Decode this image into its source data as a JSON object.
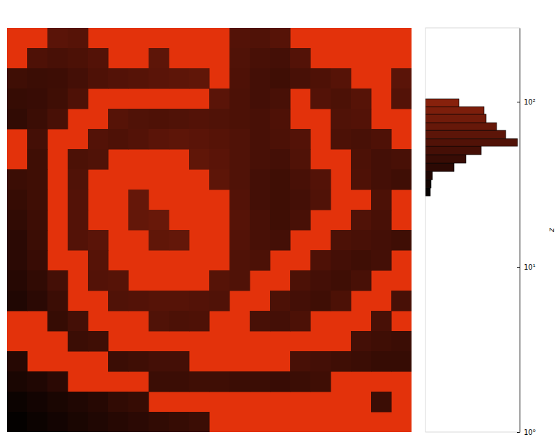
{
  "chart_data": [
    {
      "type": "heatmap",
      "tick_labels": false,
      "color": "#e3320b",
      "z": [
        [
          null,
          null,
          62,
          60,
          null,
          null,
          null,
          null,
          null,
          null,
          null,
          58,
          56,
          60,
          null,
          null,
          null,
          null,
          null,
          null
        ],
        [
          null,
          55,
          52,
          54,
          58,
          null,
          null,
          64,
          null,
          null,
          null,
          56,
          52,
          50,
          58,
          null,
          null,
          null,
          null,
          null
        ],
        [
          48,
          46,
          47,
          50,
          55,
          58,
          60,
          62,
          64,
          66,
          null,
          55,
          50,
          48,
          52,
          55,
          60,
          null,
          null,
          62
        ],
        [
          44,
          45,
          48,
          55,
          null,
          null,
          null,
          null,
          null,
          null,
          62,
          54,
          50,
          52,
          null,
          58,
          54,
          60,
          null,
          58
        ],
        [
          42,
          46,
          52,
          null,
          null,
          60,
          56,
          55,
          56,
          58,
          56,
          54,
          52,
          55,
          null,
          null,
          56,
          58,
          null,
          null
        ],
        [
          null,
          50,
          null,
          null,
          58,
          55,
          58,
          62,
          64,
          62,
          60,
          56,
          52,
          54,
          58,
          null,
          54,
          52,
          55,
          null
        ],
        [
          null,
          48,
          null,
          54,
          56,
          null,
          null,
          null,
          null,
          66,
          62,
          56,
          52,
          50,
          56,
          null,
          null,
          54,
          50,
          52
        ],
        [
          46,
          48,
          null,
          56,
          null,
          null,
          null,
          null,
          null,
          null,
          64,
          56,
          50,
          48,
          52,
          58,
          null,
          55,
          50,
          48
        ],
        [
          44,
          48,
          null,
          58,
          null,
          null,
          70,
          null,
          null,
          null,
          null,
          58,
          50,
          48,
          50,
          56,
          null,
          null,
          54,
          null
        ],
        [
          42,
          47,
          null,
          58,
          null,
          null,
          68,
          72,
          null,
          null,
          null,
          60,
          52,
          48,
          52,
          null,
          null,
          56,
          52,
          null
        ],
        [
          40,
          46,
          null,
          58,
          62,
          null,
          null,
          66,
          68,
          null,
          null,
          58,
          52,
          50,
          null,
          null,
          54,
          52,
          50,
          48
        ],
        [
          40,
          45,
          null,
          null,
          60,
          null,
          null,
          null,
          null,
          null,
          null,
          56,
          54,
          null,
          null,
          55,
          50,
          48,
          50,
          null
        ],
        [
          38,
          42,
          50,
          null,
          58,
          60,
          null,
          null,
          null,
          null,
          60,
          56,
          null,
          null,
          54,
          50,
          48,
          52,
          null,
          null
        ],
        [
          36,
          40,
          46,
          null,
          null,
          56,
          58,
          60,
          60,
          58,
          56,
          null,
          null,
          54,
          50,
          48,
          54,
          null,
          null,
          52
        ],
        [
          null,
          null,
          44,
          50,
          null,
          null,
          null,
          56,
          54,
          55,
          null,
          null,
          52,
          50,
          54,
          null,
          null,
          null,
          52,
          null
        ],
        [
          null,
          null,
          null,
          46,
          48,
          null,
          null,
          null,
          null,
          null,
          null,
          null,
          null,
          null,
          null,
          null,
          null,
          50,
          48,
          46
        ],
        [
          38,
          null,
          null,
          null,
          null,
          46,
          48,
          50,
          50,
          null,
          null,
          null,
          null,
          null,
          52,
          50,
          48,
          46,
          44,
          44
        ],
        [
          34,
          36,
          40,
          null,
          null,
          null,
          null,
          46,
          46,
          48,
          48,
          46,
          46,
          45,
          46,
          48,
          null,
          null,
          null,
          null
        ],
        [
          30,
          32,
          34,
          36,
          38,
          42,
          44,
          null,
          null,
          null,
          null,
          null,
          null,
          null,
          null,
          null,
          null,
          null,
          46,
          null
        ],
        [
          28,
          30,
          32,
          34,
          36,
          38,
          40,
          42,
          44,
          46,
          null,
          null,
          null,
          null,
          null,
          null,
          null,
          null,
          null,
          null
        ]
      ]
    },
    {
      "type": "histogram",
      "orientation": "horizontal",
      "log": "y",
      "tick_labels": "y",
      "ylabel": "z",
      "bins": [
        26.9,
        30.0,
        33.7,
        37.8,
        42.5,
        47.8,
        53.7,
        59.8,
        67.1,
        74.7,
        84.0,
        93.4,
        104
      ],
      "counts": [
        7,
        8,
        10,
        41,
        58,
        80,
        132,
        115,
        102,
        87,
        84,
        48
      ],
      "xlim": [
        0,
        135
      ],
      "ylim": [
        1,
        280
      ],
      "yticks": [
        {
          "value": 1,
          "label": "10⁰"
        },
        {
          "value": 10,
          "label": "10¹"
        },
        {
          "value": 100,
          "label": "10²"
        }
      ]
    }
  ]
}
